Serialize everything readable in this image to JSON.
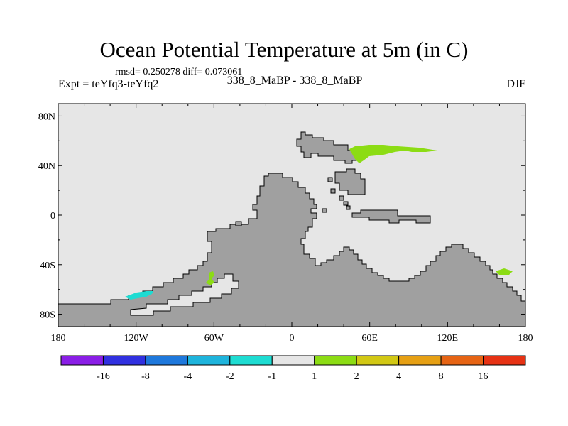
{
  "title": "Ocean Potential Temperature at 5m (in C)",
  "stats": "rmsd= 0.250278 diff= 0.073061",
  "experiment": "Expt = teYfq3-teYfq2",
  "period": "338_8_MaBP - 338_8_MaBP",
  "season": "DJF",
  "map": {
    "lon_range": [
      -180,
      180
    ],
    "lat_range": [
      -90,
      90
    ],
    "x_ticks": [
      {
        "lon": -180,
        "label": "180"
      },
      {
        "lon": -120,
        "label": "120W"
      },
      {
        "lon": -60,
        "label": "60W"
      },
      {
        "lon": 0,
        "label": "0"
      },
      {
        "lon": 60,
        "label": "60E"
      },
      {
        "lon": 120,
        "label": "120E"
      },
      {
        "lon": 180,
        "label": "180"
      }
    ],
    "y_ticks": [
      {
        "lat": 80,
        "label": "80N"
      },
      {
        "lat": 40,
        "label": "40N"
      },
      {
        "lat": 0,
        "label": "0"
      },
      {
        "lat": -40,
        "label": "40S"
      },
      {
        "lat": -80,
        "label": "80S"
      }
    ],
    "land_color": "#a0a0a0",
    "ocean_color": "#e6e6e6"
  },
  "colorbar": {
    "colors": [
      "#8a1ee6",
      "#3030e0",
      "#1e78dc",
      "#1eb4dc",
      "#1edcd2",
      "#e6e6e6",
      "#8cdc14",
      "#d2c814",
      "#e6a014",
      "#e66414",
      "#e63214"
    ],
    "labels": [
      "-16",
      "-8",
      "-4",
      "-2",
      "-1",
      "1",
      "2",
      "4",
      "8",
      "16"
    ]
  }
}
